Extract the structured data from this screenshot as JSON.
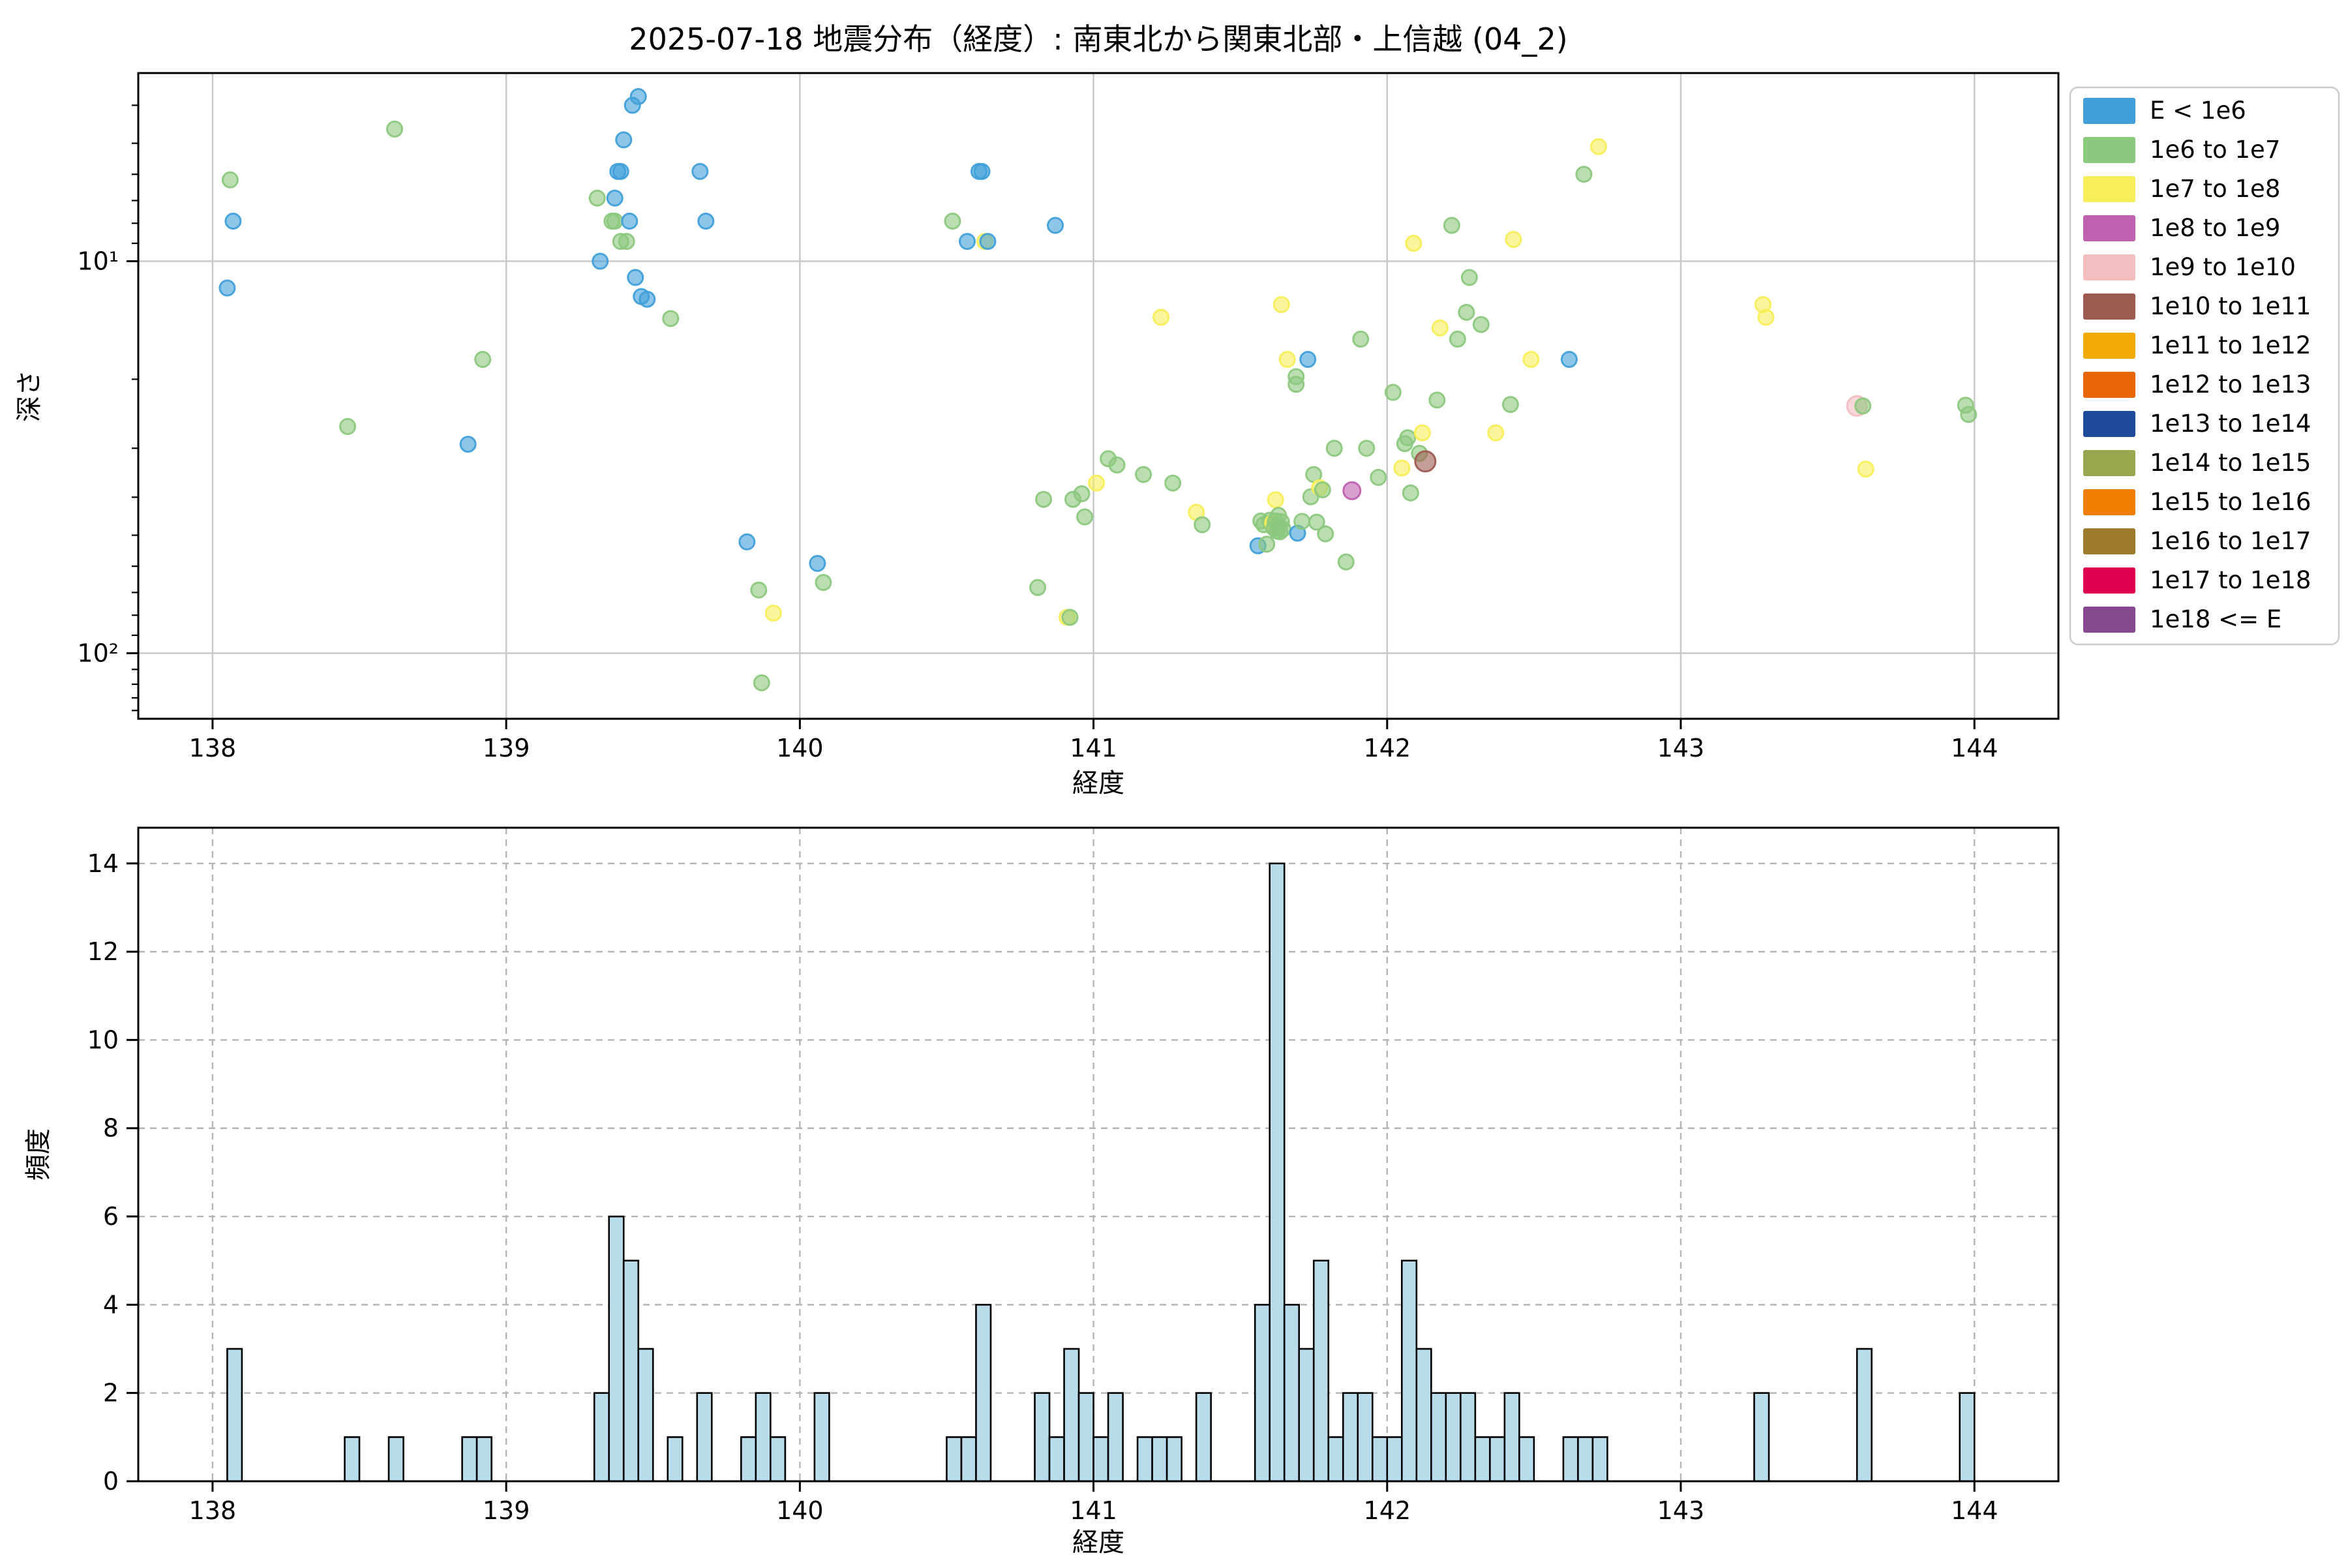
{
  "figure": {
    "title": "2025-07-18 地震分布（経度）: 南東北から関東北部・上信越 (04_2)",
    "background": "#ffffff"
  },
  "legend": {
    "entries": [
      {
        "label": "E < 1e6",
        "color": "#41a0d9"
      },
      {
        "label": "1e6 to 1e7",
        "color": "#8cc87e"
      },
      {
        "label": "1e7 to 1e8",
        "color": "#f7ee58"
      },
      {
        "label": "1e8 to 1e9",
        "color": "#bf62b0"
      },
      {
        "label": "1e9 to 1e10",
        "color": "#f4bdc0"
      },
      {
        "label": "1e10 to 1e11",
        "color": "#9e5b52"
      },
      {
        "label": "1e11 to 1e12",
        "color": "#f2a904"
      },
      {
        "label": "1e12 to 1e13",
        "color": "#e8650a"
      },
      {
        "label": "1e13 to 1e14",
        "color": "#1f4a99"
      },
      {
        "label": "1e14 to 1e15",
        "color": "#9aa74f"
      },
      {
        "label": "1e15 to 1e16",
        "color": "#ef7d00"
      },
      {
        "label": "1e16 to 1e17",
        "color": "#9c7a2e"
      },
      {
        "label": "1e17 to 1e18",
        "color": "#e00051"
      },
      {
        "label": "1e18 <= E",
        "color": "#85498d"
      }
    ]
  },
  "chart_data": [
    {
      "type": "scatter",
      "title": "",
      "xlabel": "経度",
      "ylabel": "深さ",
      "xlim": [
        137.747,
        144.286
      ],
      "xticks": [
        138,
        139,
        140,
        141,
        142,
        143,
        144
      ],
      "y_scale": "log-inverted",
      "depth_lim": [
        3.31,
        147
      ],
      "yticks": [
        {
          "value": 10,
          "label": "10¹"
        },
        {
          "value": 100,
          "label": "10²"
        }
      ],
      "minor_yticks": [
        4,
        5,
        6,
        7,
        8,
        9,
        20,
        30,
        40,
        50,
        60,
        70,
        80,
        90,
        110,
        120,
        130,
        140
      ],
      "grid": "solid",
      "marker_alpha": 0.6,
      "class_radius": [
        11.5,
        11.5,
        11.5,
        13,
        15,
        15.5
      ],
      "classes": [
        "E < 1e6",
        "1e6 to 1e7",
        "1e7 to 1e8",
        "1e8 to 1e9",
        "1e9 to 1e10",
        "1e10 to 1e11"
      ],
      "points": [
        [
          138.05,
          11.7,
          0
        ],
        [
          138.06,
          6.2,
          1
        ],
        [
          138.07,
          7.9,
          0
        ],
        [
          138.46,
          26.4,
          1
        ],
        [
          138.62,
          4.6,
          1
        ],
        [
          138.87,
          29.3,
          0
        ],
        [
          138.92,
          17.8,
          1
        ],
        [
          139.31,
          6.9,
          1
        ],
        [
          139.32,
          10.0,
          0
        ],
        [
          139.36,
          7.9,
          1
        ],
        [
          139.37,
          7.9,
          1
        ],
        [
          139.37,
          6.9,
          0
        ],
        [
          139.38,
          5.9,
          0
        ],
        [
          139.39,
          5.9,
          0
        ],
        [
          139.39,
          8.9,
          1
        ],
        [
          139.4,
          4.9,
          0
        ],
        [
          139.41,
          8.9,
          1
        ],
        [
          139.42,
          7.9,
          0
        ],
        [
          139.43,
          4.0,
          0
        ],
        [
          139.44,
          11.0,
          0
        ],
        [
          139.45,
          3.8,
          0
        ],
        [
          139.46,
          12.3,
          0
        ],
        [
          139.48,
          12.5,
          0
        ],
        [
          139.56,
          14.0,
          1
        ],
        [
          139.66,
          5.9,
          0
        ],
        [
          139.68,
          7.9,
          0
        ],
        [
          139.82,
          52,
          0
        ],
        [
          139.86,
          69,
          1
        ],
        [
          139.87,
          119,
          1
        ],
        [
          139.91,
          79,
          2
        ],
        [
          140.06,
          59,
          0
        ],
        [
          140.08,
          66,
          1
        ],
        [
          140.52,
          7.9,
          1
        ],
        [
          140.57,
          8.9,
          0
        ],
        [
          140.61,
          5.9,
          0
        ],
        [
          140.62,
          5.9,
          0
        ],
        [
          140.63,
          8.9,
          2
        ],
        [
          140.64,
          8.9,
          0
        ],
        [
          140.81,
          68,
          1
        ],
        [
          140.83,
          40.5,
          1
        ],
        [
          140.87,
          8.1,
          0
        ],
        [
          140.91,
          81,
          2
        ],
        [
          140.92,
          81,
          1
        ],
        [
          140.93,
          40.5,
          1
        ],
        [
          140.96,
          39.2,
          1
        ],
        [
          140.97,
          44.9,
          1
        ],
        [
          141.01,
          36.8,
          2
        ],
        [
          141.05,
          31.9,
          1
        ],
        [
          141.08,
          33.1,
          1
        ],
        [
          141.17,
          35.0,
          1
        ],
        [
          141.23,
          13.9,
          2
        ],
        [
          141.27,
          36.8,
          1
        ],
        [
          141.35,
          43.7,
          2
        ],
        [
          141.37,
          47.0,
          1
        ],
        [
          141.56,
          53.2,
          0
        ],
        [
          141.57,
          46.0,
          1
        ],
        [
          141.58,
          47.0,
          1
        ],
        [
          141.59,
          52.7,
          1
        ],
        [
          141.6,
          45.8,
          1
        ],
        [
          141.605,
          46.5,
          1
        ],
        [
          141.61,
          47.2,
          1
        ],
        [
          141.61,
          46.5,
          2
        ],
        [
          141.615,
          48.0,
          1
        ],
        [
          141.62,
          46.0,
          1
        ],
        [
          141.62,
          40.6,
          2
        ],
        [
          141.625,
          48.8,
          1
        ],
        [
          141.63,
          47.5,
          1
        ],
        [
          141.63,
          44.5,
          1
        ],
        [
          141.635,
          49.0,
          1
        ],
        [
          141.64,
          46.2,
          1
        ],
        [
          141.64,
          12.9,
          2
        ],
        [
          141.645,
          48.2,
          1
        ],
        [
          141.66,
          17.8,
          2
        ],
        [
          141.69,
          19.7,
          1
        ],
        [
          141.69,
          20.6,
          1
        ],
        [
          141.695,
          49.4,
          0
        ],
        [
          141.71,
          46.1,
          1
        ],
        [
          141.73,
          17.8,
          0
        ],
        [
          141.74,
          39.9,
          1
        ],
        [
          141.75,
          35.0,
          1
        ],
        [
          141.76,
          46.3,
          1
        ],
        [
          141.77,
          37.8,
          2
        ],
        [
          141.78,
          38.3,
          1
        ],
        [
          141.79,
          49.6,
          1
        ],
        [
          141.82,
          30.0,
          1
        ],
        [
          141.86,
          58.5,
          1
        ],
        [
          141.88,
          38.5,
          3
        ],
        [
          141.91,
          15.8,
          1
        ],
        [
          141.93,
          30.0,
          1
        ],
        [
          141.97,
          35.6,
          1
        ],
        [
          142.02,
          21.6,
          1
        ],
        [
          142.05,
          33.7,
          2
        ],
        [
          142.06,
          29.2,
          1
        ],
        [
          142.07,
          28.2,
          1
        ],
        [
          142.08,
          39.0,
          1
        ],
        [
          142.09,
          9.0,
          2
        ],
        [
          142.11,
          30.9,
          1
        ],
        [
          142.12,
          27.4,
          2
        ],
        [
          142.13,
          32.4,
          5
        ],
        [
          142.17,
          22.6,
          1
        ],
        [
          142.18,
          14.8,
          2
        ],
        [
          142.22,
          8.1,
          1
        ],
        [
          142.24,
          15.8,
          1
        ],
        [
          142.27,
          13.5,
          1
        ],
        [
          142.28,
          11.0,
          1
        ],
        [
          142.32,
          14.5,
          1
        ],
        [
          142.37,
          27.4,
          2
        ],
        [
          142.42,
          23.2,
          1
        ],
        [
          142.43,
          8.8,
          2
        ],
        [
          142.49,
          17.8,
          2
        ],
        [
          142.62,
          17.8,
          0
        ],
        [
          142.67,
          6.0,
          1
        ],
        [
          142.72,
          5.1,
          2
        ],
        [
          143.28,
          12.9,
          2
        ],
        [
          143.29,
          13.9,
          2
        ],
        [
          143.6,
          23.4,
          4
        ],
        [
          143.62,
          23.4,
          1
        ],
        [
          143.63,
          33.9,
          2
        ],
        [
          143.97,
          23.3,
          1
        ],
        [
          143.98,
          24.6,
          1
        ]
      ]
    },
    {
      "type": "bar",
      "title": "",
      "xlabel": "経度",
      "ylabel": "頻度",
      "xlim": [
        137.747,
        144.286
      ],
      "xticks": [
        138,
        139,
        140,
        141,
        142,
        143,
        144
      ],
      "ylim": [
        0,
        14.81
      ],
      "yticks": [
        0,
        2,
        4,
        6,
        8,
        10,
        12,
        14
      ],
      "grid": "dashed",
      "bin_width": 0.05,
      "bar_color": "#b8dcea",
      "bar_edge_color": "#000000",
      "bins": [
        [
          138.05,
          3
        ],
        [
          138.45,
          1
        ],
        [
          138.6,
          1
        ],
        [
          138.85,
          1
        ],
        [
          138.9,
          1
        ],
        [
          139.3,
          2
        ],
        [
          139.35,
          6
        ],
        [
          139.4,
          5
        ],
        [
          139.45,
          3
        ],
        [
          139.55,
          1
        ],
        [
          139.65,
          2
        ],
        [
          139.8,
          1
        ],
        [
          139.85,
          2
        ],
        [
          139.9,
          1
        ],
        [
          140.05,
          2
        ],
        [
          140.5,
          1
        ],
        [
          140.55,
          1
        ],
        [
          140.6,
          4
        ],
        [
          140.8,
          2
        ],
        [
          140.85,
          1
        ],
        [
          140.9,
          3
        ],
        [
          140.95,
          2
        ],
        [
          141.0,
          1
        ],
        [
          141.05,
          2
        ],
        [
          141.15,
          1
        ],
        [
          141.2,
          1
        ],
        [
          141.25,
          1
        ],
        [
          141.35,
          2
        ],
        [
          141.55,
          4
        ],
        [
          141.6,
          14
        ],
        [
          141.65,
          4
        ],
        [
          141.7,
          3
        ],
        [
          141.75,
          5
        ],
        [
          141.8,
          1
        ],
        [
          141.85,
          2
        ],
        [
          141.9,
          2
        ],
        [
          141.95,
          1
        ],
        [
          142.0,
          1
        ],
        [
          142.05,
          5
        ],
        [
          142.1,
          3
        ],
        [
          142.15,
          2
        ],
        [
          142.2,
          2
        ],
        [
          142.25,
          2
        ],
        [
          142.3,
          1
        ],
        [
          142.35,
          1
        ],
        [
          142.4,
          2
        ],
        [
          142.45,
          1
        ],
        [
          142.6,
          1
        ],
        [
          142.65,
          1
        ],
        [
          142.7,
          1
        ],
        [
          143.25,
          2
        ],
        [
          143.6,
          3
        ],
        [
          143.95,
          2
        ]
      ]
    }
  ]
}
